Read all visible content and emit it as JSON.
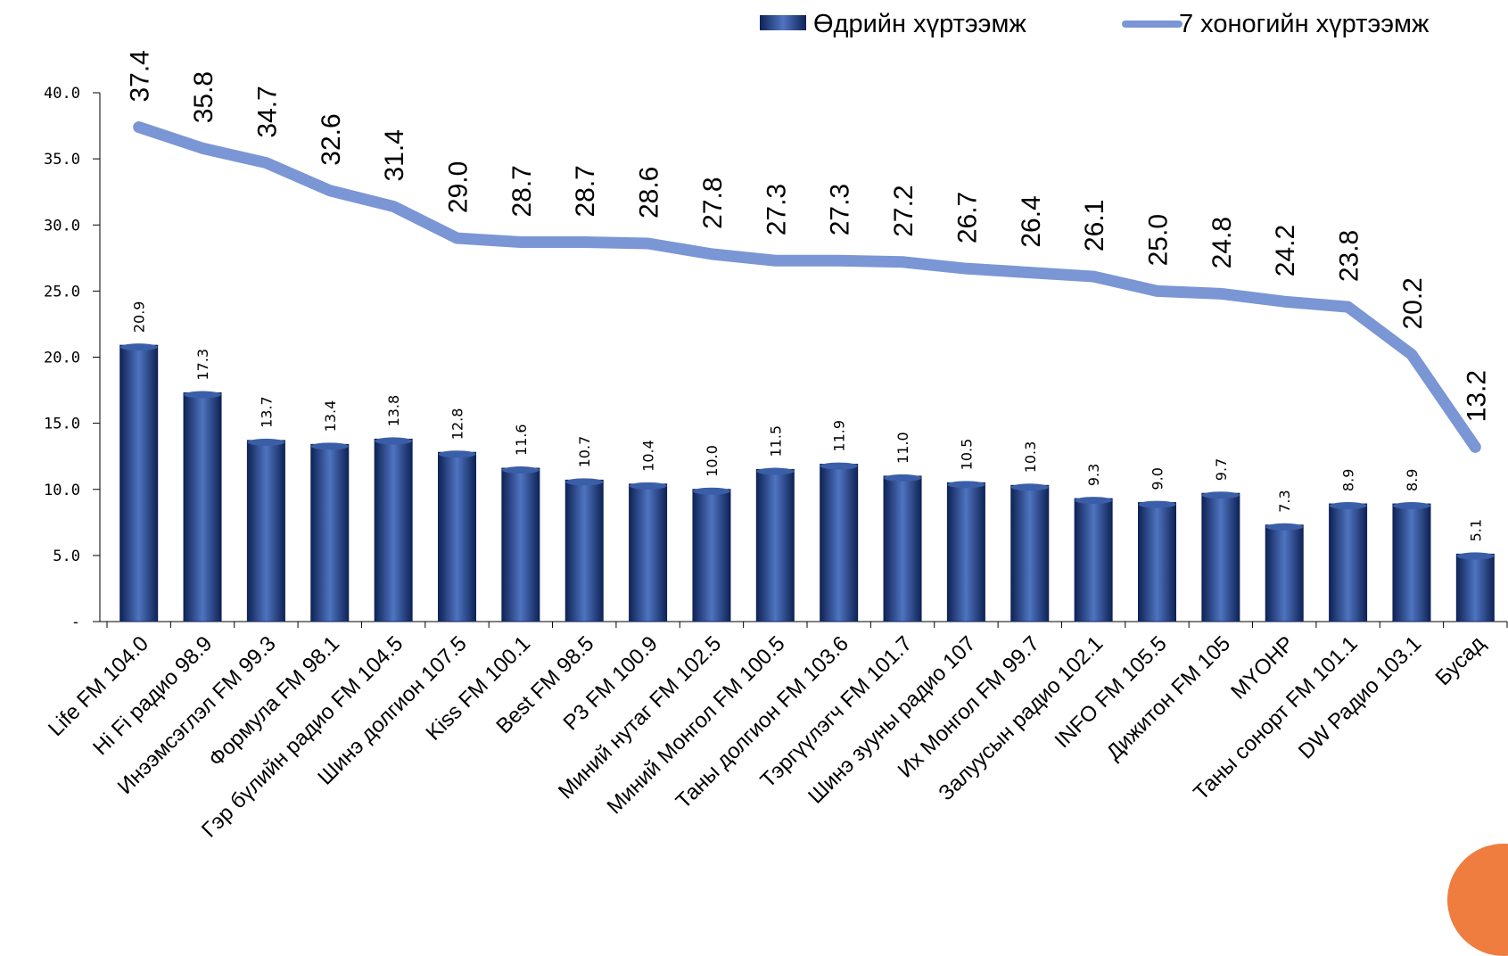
{
  "colors": {
    "bar_dark": "#0f2356",
    "bar_mid": "#3a5ea8",
    "bar_light": "#4f74c0",
    "line": "#7a96d4",
    "corner_circle": "#ef7d3f"
  },
  "chart_data": {
    "type": "bar",
    "categories": [
      "Life FM 104.0",
      "Hi Fi радио 98.9",
      "Инээмсэглэл FM 99.3",
      "Формула FM 98.1",
      "Гэр бүлийн радио FM 104.5",
      "Шинэ долгион 107.5",
      "Kiss FM 100.1",
      "Best FM 98.5",
      "P3 FM 100.9",
      "Миний нутаг FM 102.5",
      "Миний Монгол FM 100.5",
      "Таны долгион FM 103.6",
      "Тэргүүлэгч FM 101.7",
      "Шинэ зууны радио 107",
      "Их Монгол FM 99.7",
      "Залуусын радио 102.1",
      "INFO FM 105.5",
      "Дижитон FM 105",
      "MYOHP",
      "Таны сонорт FM 101.1",
      "DW Радио 103.1",
      "Бусад"
    ],
    "series": [
      {
        "name": "Өдрийн хүртээмж",
        "type": "bar",
        "values": [
          20.9,
          17.3,
          13.7,
          13.4,
          13.8,
          12.8,
          11.6,
          10.7,
          10.4,
          10.0,
          11.5,
          11.9,
          11.0,
          10.5,
          10.3,
          9.3,
          9.0,
          9.7,
          7.3,
          8.9,
          8.9,
          5.1
        ],
        "labels": [
          "20.9",
          "17.3",
          "13.7",
          "13.4",
          "13.8",
          "12.8",
          "11.6",
          "10.7",
          "10.4",
          "10.0",
          "11.5",
          "11.9",
          "11.0",
          "10.5",
          "10.3",
          "9.3",
          "9.0",
          "9.7",
          "7.3",
          "8.9",
          "8.9",
          "5.1"
        ]
      },
      {
        "name": "7 хоногийн хүртээмж",
        "type": "line",
        "values": [
          37.4,
          35.8,
          34.7,
          32.6,
          31.4,
          29.0,
          28.7,
          28.7,
          28.6,
          27.8,
          27.3,
          27.3,
          27.2,
          26.7,
          26.4,
          26.1,
          25.0,
          24.8,
          24.2,
          23.8,
          20.2,
          13.2
        ],
        "labels": [
          "37.4",
          "35.8",
          "34.7",
          "32.6",
          "31.4",
          "29.0",
          "28.7",
          "28.7",
          "28.6",
          "27.8",
          "27.3",
          "27.3",
          "27.2",
          "26.7",
          "26.4",
          "26.1",
          "25.0",
          "24.8",
          "24.2",
          "23.8",
          "20.2",
          "13.2"
        ]
      }
    ],
    "yticks": [
      0,
      5,
      10,
      15,
      20,
      25,
      30,
      35,
      40
    ],
    "ytick_labels": [
      "-",
      "5.0",
      "10.0",
      "15.0",
      "20.0",
      "25.0",
      "30.0",
      "35.0",
      "40.0"
    ],
    "ylim": [
      0,
      40
    ],
    "legend": {
      "position": "top-right",
      "items": [
        "Өдрийн хүртээмж",
        "7 хоногийн хүртээмж"
      ]
    },
    "grid": false
  }
}
